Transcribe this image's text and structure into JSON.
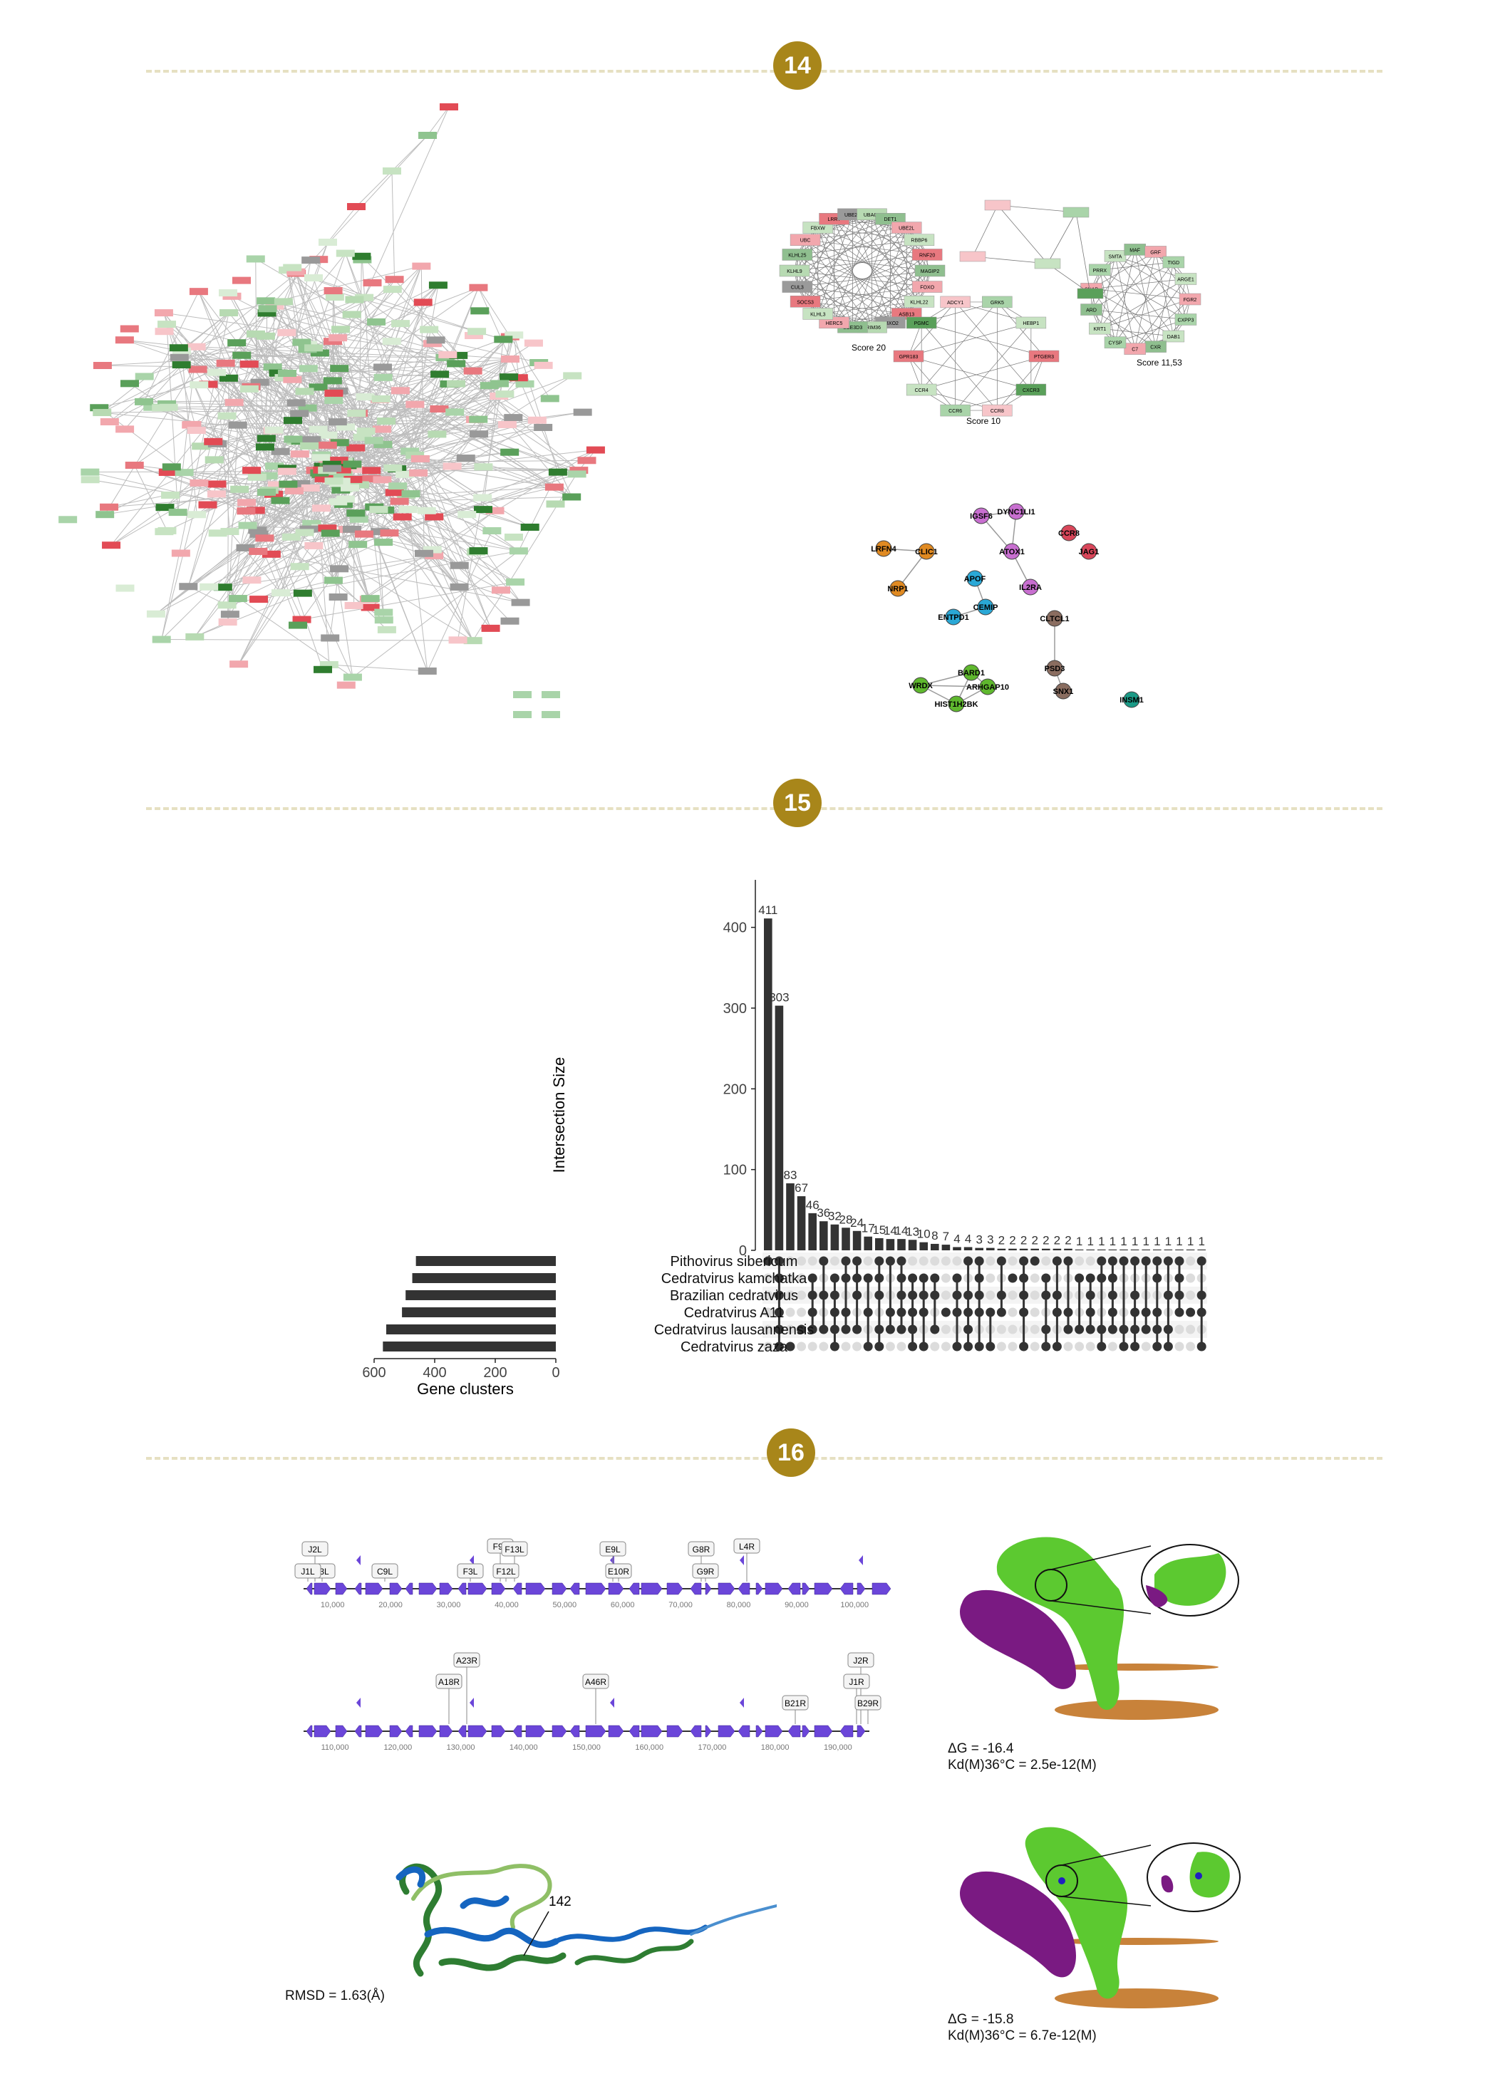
{
  "sections": [
    {
      "number": "14"
    },
    {
      "number": "15"
    },
    {
      "number": "16"
    }
  ],
  "colors": {
    "badge": "#a8861a",
    "divider": "#e6e0c2",
    "bar": "#333333",
    "gene": "#6b46d9",
    "protein_a": "#5cc930",
    "protein_b": "#7a1a82",
    "membrane": "#c8823a"
  },
  "fig14": {
    "cluster_scores": [
      "Score 20",
      "Score 10",
      "Score 11,53"
    ],
    "cluster20_genes": [
      "MAGIP2",
      "FOXO",
      "KLHL22",
      "ASB13",
      "FBXO2",
      "TRIM36",
      "UBE3D3",
      "HERC5",
      "KLHL3",
      "SOCS3",
      "CUL3",
      "KLHL9",
      "KLHL25",
      "UBC",
      "FBXW",
      "LRRT",
      "UBE2A",
      "UBAC1",
      "DET1",
      "UBE2L",
      "RBBP6",
      "RNF20"
    ],
    "cluster10_genes": [
      "PTGER3",
      "CXCR3",
      "CCR8",
      "CCR6",
      "CCR4",
      "GPR183",
      "PGMC",
      "ADCY1",
      "GRK5",
      "HEBP1"
    ],
    "cluster11_genes": [
      "FGR2",
      "CXPP3",
      "DAB1",
      "CXR",
      "C7",
      "CYSP",
      "KRT1",
      "ARD",
      "SNAP",
      "PRRX",
      "SMTA",
      "MAF",
      "GRF",
      "TIGD",
      "ARGE1"
    ],
    "colored_nodes": [
      {
        "label": "DYNC1LI1",
        "color": "#c86fd0"
      },
      {
        "label": "IGSF6",
        "color": "#c86fd0"
      },
      {
        "label": "ATOX1",
        "color": "#c86fd0"
      },
      {
        "label": "IL2RA",
        "color": "#c86fd0"
      },
      {
        "label": "CCR8",
        "color": "#d9465a"
      },
      {
        "label": "JAG1",
        "color": "#d9465a"
      },
      {
        "label": "LRFN4",
        "color": "#e08a22"
      },
      {
        "label": "CLIC1",
        "color": "#e08a22"
      },
      {
        "label": "NRP1",
        "color": "#e08a22"
      },
      {
        "label": "APOF",
        "color": "#2aa8d6"
      },
      {
        "label": "CEMIP",
        "color": "#2aa8d6"
      },
      {
        "label": "ENTPD1",
        "color": "#2aa8d6"
      },
      {
        "label": "CLTCL1",
        "color": "#8a6d60"
      },
      {
        "label": "PSD3",
        "color": "#8a6d60"
      },
      {
        "label": "SNX1",
        "color": "#8a6d60"
      },
      {
        "label": "BARD1",
        "color": "#5fb82e"
      },
      {
        "label": "WRDX",
        "color": "#5fb82e"
      },
      {
        "label": "ARHGAP10",
        "color": "#5fb82e"
      },
      {
        "label": "HIST1H2BK",
        "color": "#5fb82e"
      },
      {
        "label": "INSM1",
        "color": "#1a9a86"
      }
    ]
  },
  "chart_data": {
    "type": "bar",
    "ylabel": "Intersection Size",
    "yticks": [
      0,
      100,
      200,
      300,
      400
    ],
    "ylim": [
      0,
      450
    ],
    "values": [
      411,
      303,
      83,
      67,
      46,
      36,
      32,
      28,
      24,
      17,
      15,
      14,
      14,
      13,
      10,
      8,
      7,
      4,
      4,
      3,
      3,
      2,
      2,
      2,
      2,
      2,
      2,
      2,
      1,
      1,
      1,
      1,
      1,
      1,
      1,
      1,
      1,
      1,
      1,
      1
    ],
    "set_names": [
      "Pithovirus sibericum",
      "Cedratvirus kamchatka",
      "Brazilian cedratvirus",
      "Cedratvirus A11",
      "Cedratvirus lausannensis",
      "Cedratvirus zaza"
    ],
    "set_sizes": [
      462,
      474,
      496,
      508,
      560,
      571
    ],
    "set_xlabel": "Gene clusters",
    "set_xticks": [
      "600",
      "400",
      "200",
      "0"
    ]
  },
  "fig16": {
    "genome_top_labels": [
      "J2L",
      "J3L",
      "J1L",
      "C9L",
      "F9L",
      "F13L",
      "F12L",
      "F3L",
      "E9L",
      "E10R",
      "G8R",
      "G9R",
      "L4R"
    ],
    "genome_top_axis": [
      "10,000",
      "20,000",
      "30,000",
      "40,000",
      "50,000",
      "60,000",
      "70,000",
      "80,000",
      "90,000",
      "100,000"
    ],
    "genome_bottom_labels": [
      "A23R",
      "A18R",
      "A46R",
      "J2R",
      "J1R",
      "B21R",
      "B29R"
    ],
    "genome_bottom_axis": [
      "110,000",
      "120,000",
      "130,000",
      "140,000",
      "150,000",
      "160,000",
      "170,000",
      "180,000",
      "190,000"
    ],
    "structure_label": "142",
    "rmsd": "RMSD = 1.63(Å)",
    "dock1_dg": "ΔG = -16.4",
    "dock1_kd": "Kd(M)36°C = 2.5e-12(M)",
    "dock2_dg": "ΔG = -15.8",
    "dock2_kd": "Kd(M)36°C = 6.7e-12(M)"
  }
}
